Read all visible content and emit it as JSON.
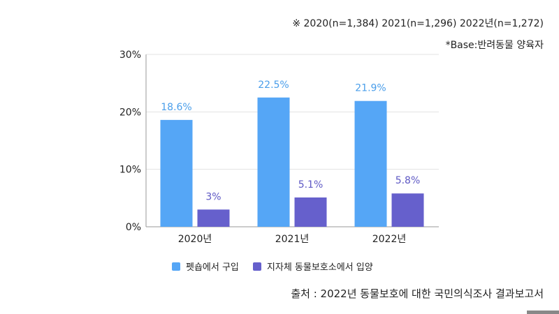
{
  "notes": {
    "sample_sizes": "※ 2020(n=1,384)      2021(n=1,296)      2022년(n=1,272)",
    "base": "*Base:반려동물 양육자"
  },
  "source": "출처 : 2022년 동물보호에 대한 국민의식조사 결과보고서",
  "chart_data": {
    "type": "bar",
    "categories": [
      "2020년",
      "2021년",
      "2022년"
    ],
    "series": [
      {
        "name": "펫숍에서 구입",
        "values": [
          18.6,
          22.5,
          21.9
        ],
        "labels": [
          "18.6%",
          "22.5%",
          "21.9%"
        ],
        "color": "#55A6F6",
        "label_color": "#4A9EEA"
      },
      {
        "name": "지자체 동물보호소에서 입양",
        "values": [
          3,
          5.1,
          5.8
        ],
        "labels": [
          "3%",
          "5.1%",
          "5.8%"
        ],
        "color": "#6660CC",
        "label_color": "#5E58C4"
      }
    ],
    "yticks": [
      "0%",
      "10%",
      "20%",
      "30%"
    ],
    "ylim": [
      0,
      30
    ],
    "grid": true,
    "legend_position": "bottom"
  }
}
